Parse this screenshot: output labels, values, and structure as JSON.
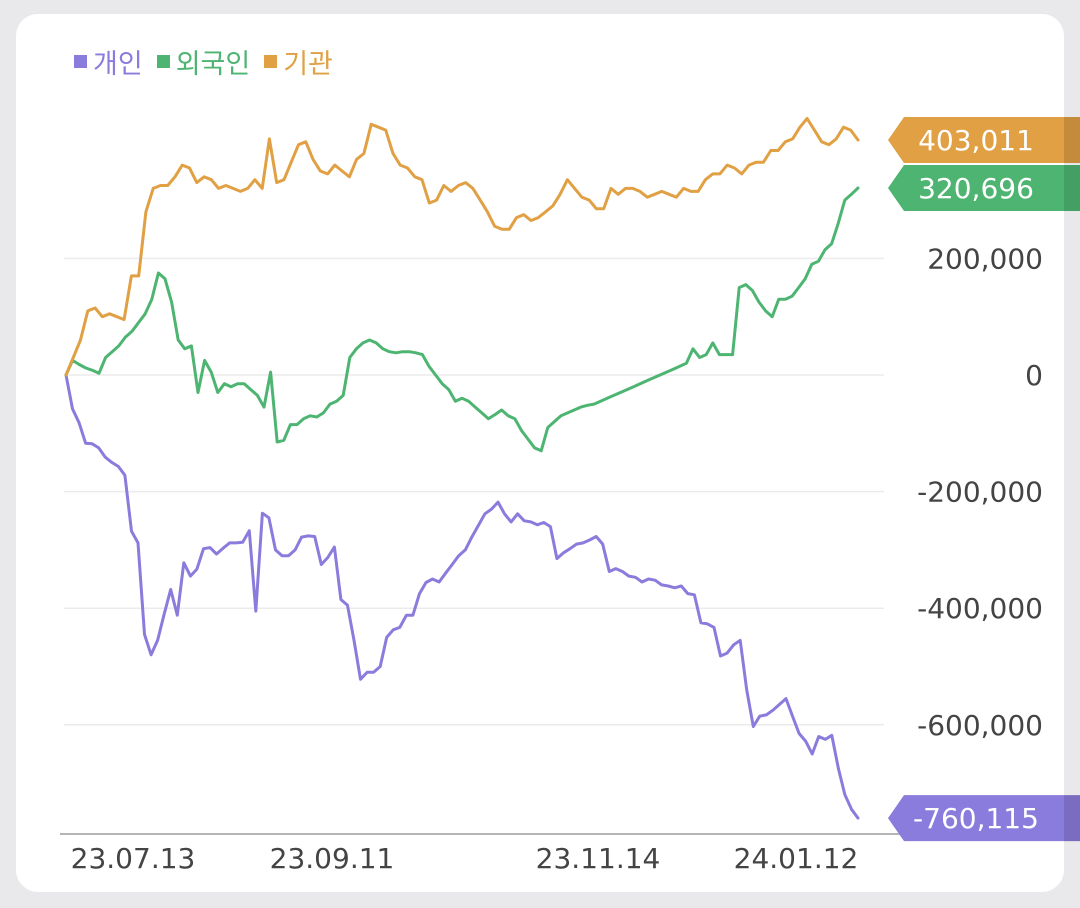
{
  "chart_data": {
    "type": "line",
    "title": "",
    "xlabel": "",
    "ylabel": "",
    "ylim": [
      -760115,
      450000
    ],
    "y_ticks": [
      200000,
      0,
      -200000,
      -400000,
      -600000
    ],
    "y_tick_labels": [
      "200,000",
      "0",
      "-200,000",
      "-400,000",
      "-600,000"
    ],
    "x_tick_labels": [
      "23.07.13",
      "23.09.11",
      "23.11.14",
      "24.01.12"
    ],
    "grid": true,
    "legend_position": "top-left",
    "series": [
      {
        "name": "개인",
        "color": "#8a7cdc",
        "end_label": "-760,115",
        "values": [
          0,
          -58000,
          -82000,
          -117000,
          -118000,
          -125000,
          -141000,
          -150000,
          -157000,
          -172000,
          -268000,
          -288000,
          -445000,
          -480000,
          -455000,
          -410000,
          -368000,
          -412000,
          -322000,
          -345000,
          -333000,
          -298000,
          -296000,
          -307000,
          -297000,
          -288000,
          -288000,
          -287000,
          -267000,
          -405000,
          -237000,
          -245000,
          -300000,
          -310000,
          -310000,
          -300000,
          -278000,
          -276000,
          -277000,
          -325000,
          -313000,
          -295000,
          -385000,
          -395000,
          -455000,
          -522000,
          -510000,
          -510000,
          -500000,
          -450000,
          -437000,
          -433000,
          -412000,
          -412000,
          -375000,
          -356000,
          -350000,
          -355000,
          -340000,
          -325000,
          -310000,
          -300000,
          -278000,
          -258000,
          -238000,
          -230000,
          -218000,
          -238000,
          -252000,
          -238000,
          -250000,
          -252000,
          -257000,
          -253000,
          -260000,
          -315000,
          -305000,
          -298000,
          -290000,
          -288000,
          -283000,
          -277000,
          -290000,
          -337000,
          -332000,
          -337000,
          -345000,
          -347000,
          -355000,
          -350000,
          -352000,
          -360000,
          -362000,
          -365000,
          -362000,
          -375000,
          -377000,
          -425000,
          -427000,
          -433000,
          -482000,
          -477000,
          -463000,
          -455000,
          -540000,
          -603000,
          -585000,
          -583000,
          -575000,
          -565000,
          -555000,
          -585000,
          -615000,
          -628000,
          -650000,
          -620000,
          -625000,
          -618000,
          -675000,
          -720000,
          -745000,
          -760115
        ]
      },
      {
        "name": "외국인",
        "color": "#4db571",
        "end_label": "320,696",
        "values": [
          0,
          25000,
          18000,
          12000,
          8000,
          3000,
          30000,
          40000,
          50000,
          65000,
          75000,
          90000,
          105000,
          130000,
          175000,
          165000,
          125000,
          60000,
          45000,
          50000,
          -30000,
          25000,
          5000,
          -30000,
          -15000,
          -20000,
          -15000,
          -15000,
          -25000,
          -35000,
          -55000,
          5000,
          -115000,
          -112000,
          -85000,
          -85000,
          -75000,
          -70000,
          -72000,
          -65000,
          -50000,
          -45000,
          -35000,
          30000,
          45000,
          55000,
          60000,
          55000,
          45000,
          40000,
          38000,
          40000,
          40000,
          38000,
          35000,
          15000,
          0,
          -15000,
          -25000,
          -45000,
          -40000,
          -45000,
          -55000,
          -65000,
          -75000,
          -68000,
          -60000,
          -70000,
          -75000,
          -95000,
          -110000,
          -125000,
          -130000,
          -90000,
          -80000,
          -70000,
          -65000,
          -60000,
          -55000,
          -52000,
          -50000,
          -45000,
          -40000,
          -35000,
          -30000,
          -25000,
          -20000,
          -15000,
          -10000,
          -5000,
          0,
          5000,
          10000,
          15000,
          20000,
          45000,
          30000,
          35000,
          55000,
          35000,
          35000,
          35000,
          150000,
          155000,
          145000,
          125000,
          110000,
          100000,
          130000,
          130000,
          135000,
          150000,
          165000,
          190000,
          195000,
          215000,
          225000,
          260000,
          300000,
          310000,
          320696
        ]
      },
      {
        "name": "기관",
        "color": "#e0a043",
        "end_label": "403,011",
        "values": [
          0,
          30000,
          60000,
          110000,
          115000,
          100000,
          105000,
          100000,
          95000,
          170000,
          170000,
          280000,
          320000,
          325000,
          325000,
          340000,
          360000,
          355000,
          330000,
          340000,
          335000,
          320000,
          325000,
          320000,
          315000,
          320000,
          335000,
          320000,
          405000,
          330000,
          335000,
          365000,
          395000,
          400000,
          370000,
          350000,
          345000,
          360000,
          350000,
          340000,
          370000,
          380000,
          430000,
          425000,
          420000,
          380000,
          360000,
          355000,
          340000,
          335000,
          295000,
          300000,
          325000,
          315000,
          325000,
          330000,
          320000,
          300000,
          280000,
          255000,
          250000,
          250000,
          270000,
          275000,
          265000,
          270000,
          280000,
          290000,
          310000,
          335000,
          320000,
          305000,
          300000,
          285000,
          285000,
          320000,
          310000,
          320000,
          320000,
          315000,
          305000,
          310000,
          315000,
          310000,
          305000,
          320000,
          315000,
          315000,
          335000,
          345000,
          345000,
          360000,
          355000,
          345000,
          360000,
          365000,
          365000,
          385000,
          385000,
          400000,
          405000,
          425000,
          440000,
          420000,
          400000,
          395000,
          405000,
          425000,
          420000,
          403011
        ]
      }
    ]
  }
}
